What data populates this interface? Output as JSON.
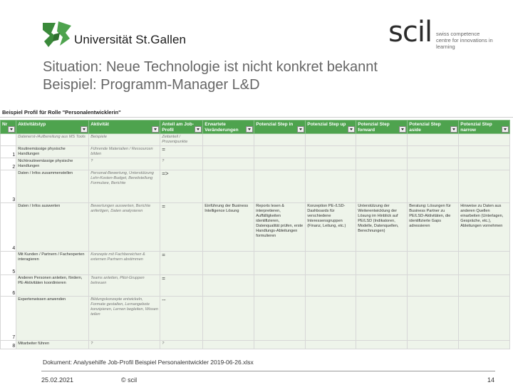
{
  "header": {
    "university_name": "Universität St.Gallen",
    "scil_word": "scil",
    "scil_tagline": "swiss competence centre for innovations in learning",
    "accent_green": "#3e8e3a"
  },
  "title": {
    "line1": "Situation: Neue Technologie ist nicht konkret bekannt",
    "line2": "Beispiel: Programm-Manager L&D"
  },
  "sheet": {
    "title": "Beispiel Profil für Rolle \"Personalentwicklerin\"",
    "columns": [
      "Nr",
      "Aktivitätstyp",
      "Aktivität",
      "Anteil am Job-Profil",
      "Erwartete Veränderungen",
      "Potenzial Step in",
      "Potenzial Step up",
      "Potenzial Step forward",
      "Potenzial Step aside",
      "Potenzial Step narrow"
    ],
    "rows": [
      {
        "nr": "",
        "cells": [
          "Datenerst-/Aufbereitung aus MS Tools",
          "Beispiele",
          "Zeitanteil / Prozentpunkte",
          "",
          "",
          "",
          "",
          "",
          ""
        ]
      },
      {
        "nr": "1",
        "cells": [
          "Routinemässige physische Handlungen",
          "Führende Materialien / Ressourcen bilden",
          "=",
          "",
          "",
          "",
          "",
          "",
          ""
        ]
      },
      {
        "nr": "2",
        "cells": [
          "Nichtroutinemässige physische Handlungen",
          "?",
          "?",
          "",
          "",
          "",
          "",
          "",
          ""
        ]
      },
      {
        "nr": "3",
        "cells": [
          "Daten / Infos zusammenstellen",
          "Personal-Bewertung, Unterstützung Lehr-Kosten-Budget, Bereitstellung Formulare, Berichte",
          "=>",
          "",
          "",
          "",
          "",
          "",
          ""
        ]
      },
      {
        "nr": "4",
        "cells": [
          "Daten / Infos auswerten",
          "Bewertungen auswerten, Berichte anfertigen, Daten analysieren",
          "=",
          "Einführung der Business Intelligence Lösung",
          "Reports lesen & interpretieren, Auffälligkeiten identifizieren, Datenqualität prüfen, erste Handlungs-Ableitungen formulieren",
          "Konzeption PE-/LSD-Dashboards für verschiedene Interessensgruppen (Finanz, Leitung, etc.)",
          "Unterstützung der Weiterentwicklung der Lösung im Hinblick auf PE/LSD (Indikatoren, Modelle, Datenquellen, Berechnungen)",
          "Beratung: Lösungen für Business Partner zu PE/LSD-Aktivitäten, die identifizierte Gaps adressieren",
          "Hinweise zu Daten aus anderen Quellen einarbeiten (Unterlagen, Gespräche, etc.), Ableitungen vornehmen"
        ]
      },
      {
        "nr": "5",
        "cells": [
          "Mit Kunden / Partnern / Fachexperten interagieren",
          "Konzepte mit Fachbereichen & externen Partnern abstimmen",
          "=",
          "",
          "",
          "",
          "",
          "",
          ""
        ]
      },
      {
        "nr": "6",
        "cells": [
          "Anderen Personen anleiten, fördern, PE-Aktivitäten koordinieren",
          "Teams anleiten, Pilot-Gruppen betreuen",
          "=",
          "",
          "",
          "",
          "",
          "",
          ""
        ]
      },
      {
        "nr": "7",
        "cells": [
          "Expertenwissen anwenden",
          "Bildungskonzepte entwickeln, Formate gestalten, Lernangebote konzipieren, Lernen begleiten, Wissen teilen",
          "--",
          "",
          "",
          "",
          "",
          "",
          ""
        ]
      },
      {
        "nr": "8",
        "cells": [
          "Mitarbeiter führen",
          "?",
          "?",
          "",
          "",
          "",
          "",
          "",
          ""
        ]
      }
    ]
  },
  "footer": {
    "document": "Dokument: Analysehilfe Job-Profil Beispiel Personalentwickler 2019-06-26.xlsx",
    "date": "25.02.2021",
    "copyright": "© scil",
    "page": "14"
  }
}
